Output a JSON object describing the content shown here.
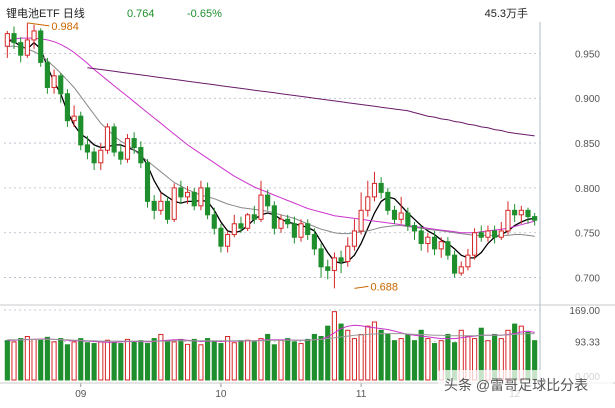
{
  "header": {
    "title": "锂电池ETF 日线",
    "price": "0.764",
    "change": "-0.65%",
    "volume": "45.3万手"
  },
  "colors": {
    "up": "#d62728",
    "down": "#1e8f2c",
    "ma_short": "#000000",
    "ma_mid": "#888888",
    "ma_long": "#cc33cc",
    "ma_longest": "#6a1a6a",
    "annotation": "#cc6600",
    "grid": "#b0b8c8",
    "axis_text": "#555555"
  },
  "watermark": "头条 @雷哥足球比分表",
  "chart_data": [
    {
      "type": "candlestick",
      "name": "price",
      "ylim": [
        0.675,
        0.985
      ],
      "y_ticks": [
        0.7,
        0.75,
        0.8,
        0.85,
        0.9,
        0.95
      ],
      "y_tick_labels": [
        "0.700",
        "0.750",
        "0.800",
        "0.850",
        "0.900",
        "0.950"
      ],
      "x_tick_labels": [
        {
          "i": 11,
          "label": "09"
        },
        {
          "i": 32,
          "label": "10"
        },
        {
          "i": 53,
          "label": "11"
        },
        {
          "i": 76,
          "label": "12"
        }
      ],
      "annotations": [
        {
          "i": 3,
          "value": 0.984,
          "label": "0.984"
        },
        {
          "i": 52,
          "value": 0.688,
          "label": "0.688"
        }
      ],
      "candles": [
        [
          0.958,
          0.972,
          0.975,
          0.945
        ],
        [
          0.972,
          0.962,
          0.98,
          0.955
        ],
        [
          0.962,
          0.948,
          0.968,
          0.94
        ],
        [
          0.948,
          0.965,
          0.984,
          0.945
        ],
        [
          0.965,
          0.975,
          0.982,
          0.955
        ],
        [
          0.975,
          0.94,
          0.978,
          0.935
        ],
        [
          0.94,
          0.912,
          0.945,
          0.905
        ],
        [
          0.912,
          0.925,
          0.932,
          0.905
        ],
        [
          0.925,
          0.905,
          0.928,
          0.895
        ],
        [
          0.905,
          0.875,
          0.91,
          0.868
        ],
        [
          0.875,
          0.88,
          0.892,
          0.868
        ],
        [
          0.88,
          0.848,
          0.885,
          0.842
        ],
        [
          0.848,
          0.84,
          0.858,
          0.832
        ],
        [
          0.84,
          0.828,
          0.845,
          0.82
        ],
        [
          0.828,
          0.842,
          0.85,
          0.82
        ],
        [
          0.842,
          0.868,
          0.872,
          0.838
        ],
        [
          0.868,
          0.84,
          0.872,
          0.835
        ],
        [
          0.84,
          0.832,
          0.848,
          0.826
        ],
        [
          0.832,
          0.855,
          0.86,
          0.828
        ],
        [
          0.855,
          0.845,
          0.862,
          0.838
        ],
        [
          0.845,
          0.828,
          0.852,
          0.822
        ],
        [
          0.828,
          0.785,
          0.832,
          0.778
        ],
        [
          0.785,
          0.775,
          0.792,
          0.765
        ],
        [
          0.775,
          0.785,
          0.795,
          0.77
        ],
        [
          0.785,
          0.765,
          0.79,
          0.76
        ],
        [
          0.765,
          0.8,
          0.805,
          0.762
        ],
        [
          0.8,
          0.79,
          0.808,
          0.782
        ],
        [
          0.79,
          0.795,
          0.802,
          0.782
        ],
        [
          0.795,
          0.78,
          0.8,
          0.775
        ],
        [
          0.78,
          0.8,
          0.808,
          0.775
        ],
        [
          0.8,
          0.77,
          0.806,
          0.765
        ],
        [
          0.77,
          0.755,
          0.778,
          0.748
        ],
        [
          0.755,
          0.735,
          0.76,
          0.728
        ],
        [
          0.735,
          0.748,
          0.752,
          0.728
        ],
        [
          0.748,
          0.76,
          0.77,
          0.745
        ],
        [
          0.76,
          0.755,
          0.768,
          0.75
        ],
        [
          0.755,
          0.77,
          0.772,
          0.752
        ],
        [
          0.77,
          0.765,
          0.78,
          0.76
        ],
        [
          0.765,
          0.792,
          0.808,
          0.762
        ],
        [
          0.792,
          0.78,
          0.798,
          0.775
        ],
        [
          0.78,
          0.755,
          0.785,
          0.748
        ],
        [
          0.755,
          0.765,
          0.77,
          0.75
        ],
        [
          0.765,
          0.76,
          0.77,
          0.755
        ],
        [
          0.76,
          0.745,
          0.768,
          0.738
        ],
        [
          0.745,
          0.76,
          0.765,
          0.74
        ],
        [
          0.76,
          0.748,
          0.765,
          0.742
        ],
        [
          0.748,
          0.732,
          0.755,
          0.725
        ],
        [
          0.732,
          0.712,
          0.738,
          0.7
        ],
        [
          0.712,
          0.708,
          0.72,
          0.698
        ],
        [
          0.708,
          0.722,
          0.728,
          0.688
        ],
        [
          0.722,
          0.718,
          0.73,
          0.705
        ],
        [
          0.718,
          0.735,
          0.745,
          0.712
        ],
        [
          0.735,
          0.752,
          0.765,
          0.73
        ],
        [
          0.752,
          0.775,
          0.795,
          0.748
        ],
        [
          0.775,
          0.79,
          0.808,
          0.768
        ],
        [
          0.79,
          0.805,
          0.818,
          0.785
        ],
        [
          0.805,
          0.795,
          0.812,
          0.788
        ],
        [
          0.795,
          0.775,
          0.8,
          0.77
        ],
        [
          0.775,
          0.765,
          0.78,
          0.76
        ],
        [
          0.765,
          0.772,
          0.79,
          0.76
        ],
        [
          0.772,
          0.758,
          0.778,
          0.752
        ],
        [
          0.758,
          0.752,
          0.762,
          0.742
        ],
        [
          0.752,
          0.738,
          0.758,
          0.73
        ],
        [
          0.738,
          0.745,
          0.75,
          0.728
        ],
        [
          0.745,
          0.732,
          0.752,
          0.725
        ],
        [
          0.732,
          0.74,
          0.745,
          0.722
        ],
        [
          0.74,
          0.725,
          0.745,
          0.72
        ],
        [
          0.725,
          0.705,
          0.73,
          0.7
        ],
        [
          0.705,
          0.712,
          0.718,
          0.702
        ],
        [
          0.712,
          0.725,
          0.732,
          0.708
        ],
        [
          0.725,
          0.75,
          0.755,
          0.72
        ],
        [
          0.75,
          0.745,
          0.758,
          0.74
        ],
        [
          0.745,
          0.752,
          0.758,
          0.74
        ],
        [
          0.752,
          0.745,
          0.758,
          0.738
        ],
        [
          0.745,
          0.752,
          0.762,
          0.742
        ],
        [
          0.752,
          0.775,
          0.785,
          0.748
        ],
        [
          0.775,
          0.77,
          0.782,
          0.762
        ],
        [
          0.77,
          0.775,
          0.78,
          0.76
        ],
        [
          0.775,
          0.768,
          0.778,
          0.76
        ],
        [
          0.768,
          0.764,
          0.772,
          0.758
        ]
      ],
      "series": [
        {
          "key": "ma_short",
          "values": [
            0.965,
            0.963,
            0.958,
            0.955,
            0.962,
            0.955,
            0.935,
            0.918,
            0.905,
            0.885,
            0.87,
            0.86,
            0.855,
            0.848,
            0.845,
            0.846,
            0.848,
            0.848,
            0.845,
            0.842,
            0.838,
            0.825,
            0.808,
            0.795,
            0.79,
            0.785,
            0.783,
            0.785,
            0.785,
            0.786,
            0.785,
            0.775,
            0.762,
            0.752,
            0.75,
            0.752,
            0.758,
            0.765,
            0.77,
            0.772,
            0.77,
            0.765,
            0.762,
            0.76,
            0.758,
            0.756,
            0.752,
            0.74,
            0.728,
            0.718,
            0.716,
            0.718,
            0.725,
            0.738,
            0.755,
            0.772,
            0.785,
            0.79,
            0.788,
            0.78,
            0.772,
            0.765,
            0.758,
            0.752,
            0.748,
            0.742,
            0.738,
            0.732,
            0.725,
            0.722,
            0.722,
            0.728,
            0.738,
            0.745,
            0.748,
            0.752,
            0.758,
            0.762,
            0.765,
            0.766
          ]
        },
        {
          "key": "ma_mid",
          "values": [
            0.958,
            0.958,
            0.957,
            0.955,
            0.952,
            0.948,
            0.942,
            0.935,
            0.928,
            0.92,
            0.912,
            0.902,
            0.892,
            0.882,
            0.872,
            0.865,
            0.858,
            0.852,
            0.848,
            0.842,
            0.836,
            0.83,
            0.824,
            0.818,
            0.812,
            0.806,
            0.802,
            0.798,
            0.795,
            0.792,
            0.79,
            0.788,
            0.785,
            0.782,
            0.78,
            0.778,
            0.777,
            0.776,
            0.775,
            0.774,
            0.772,
            0.77,
            0.768,
            0.766,
            0.763,
            0.76,
            0.757,
            0.754,
            0.752,
            0.75,
            0.749,
            0.749,
            0.75,
            0.751,
            0.752,
            0.754,
            0.756,
            0.757,
            0.758,
            0.758,
            0.757,
            0.756,
            0.755,
            0.754,
            0.753,
            0.752,
            0.751,
            0.75,
            0.749,
            0.748,
            0.747,
            0.747,
            0.747,
            0.747,
            0.747,
            0.747,
            0.748,
            0.748,
            0.747,
            0.746
          ]
        },
        {
          "key": "ma_long",
          "values": [
            0.965,
            0.966,
            0.967,
            0.967,
            0.967,
            0.966,
            0.965,
            0.963,
            0.96,
            0.956,
            0.951,
            0.945,
            0.939,
            0.932,
            0.926,
            0.92,
            0.914,
            0.908,
            0.902,
            0.896,
            0.89,
            0.884,
            0.878,
            0.872,
            0.866,
            0.86,
            0.854,
            0.848,
            0.843,
            0.838,
            0.833,
            0.828,
            0.823,
            0.818,
            0.813,
            0.809,
            0.805,
            0.801,
            0.798,
            0.795,
            0.792,
            0.789,
            0.786,
            0.783,
            0.78,
            0.777,
            0.775,
            0.773,
            0.771,
            0.769,
            0.768,
            0.767,
            0.766,
            0.765,
            0.764,
            0.763,
            0.762,
            0.761,
            0.76,
            0.759,
            0.758,
            0.757,
            0.756,
            0.755,
            0.754,
            0.753,
            0.752,
            0.751,
            0.75,
            0.75,
            0.75,
            0.751,
            0.752,
            0.753,
            0.754,
            0.755,
            0.757,
            0.759,
            0.761,
            0.763
          ]
        },
        {
          "key": "ma_longest",
          "start": 12,
          "values": [
            0.934,
            0.933,
            0.932,
            0.931,
            0.93,
            0.929,
            0.928,
            0.927,
            0.926,
            0.925,
            0.924,
            0.923,
            0.922,
            0.921,
            0.92,
            0.919,
            0.918,
            0.917,
            0.916,
            0.915,
            0.914,
            0.913,
            0.912,
            0.911,
            0.91,
            0.909,
            0.908,
            0.907,
            0.906,
            0.905,
            0.904,
            0.903,
            0.902,
            0.901,
            0.9,
            0.899,
            0.898,
            0.897,
            0.896,
            0.895,
            0.894,
            0.893,
            0.892,
            0.891,
            0.89,
            0.889,
            0.888,
            0.887,
            0.886,
            0.884,
            0.882,
            0.88,
            0.879,
            0.877,
            0.876,
            0.874,
            0.873,
            0.871,
            0.87,
            0.868,
            0.867,
            0.865,
            0.864,
            0.862,
            0.861,
            0.86,
            0.859,
            0.858
          ]
        }
      ]
    },
    {
      "type": "bar",
      "name": "volume",
      "ylim": [
        0,
        169
      ],
      "y_tick_labels": [
        "169.00",
        "93.33",
        "0.000"
      ],
      "values": [
        95,
        92,
        100,
        105,
        98,
        96,
        103,
        92,
        100,
        85,
        92,
        100,
        90,
        88,
        92,
        96,
        90,
        88,
        98,
        92,
        95,
        88,
        100,
        110,
        95,
        92,
        98,
        86,
        98,
        85,
        100,
        92,
        88,
        105,
        90,
        95,
        96,
        92,
        100,
        110,
        85,
        96,
        100,
        92,
        88,
        98,
        110,
        105,
        130,
        165,
        135,
        120,
        100,
        110,
        130,
        140,
        120,
        110,
        95,
        100,
        110,
        95,
        120,
        100,
        88,
        95,
        110,
        90,
        120,
        105,
        100,
        125,
        95,
        110,
        100,
        120,
        135,
        130,
        115,
        95
      ],
      "dir": [
        0,
        1,
        0,
        1,
        1,
        0,
        0,
        1,
        0,
        0,
        1,
        0,
        0,
        0,
        1,
        1,
        0,
        0,
        1,
        0,
        0,
        0,
        0,
        1,
        0,
        1,
        0,
        1,
        0,
        1,
        0,
        0,
        0,
        1,
        1,
        0,
        1,
        0,
        1,
        0,
        0,
        1,
        0,
        0,
        1,
        0,
        0,
        0,
        0,
        1,
        0,
        1,
        1,
        1,
        1,
        1,
        0,
        0,
        0,
        1,
        0,
        0,
        0,
        1,
        0,
        1,
        0,
        0,
        1,
        1,
        1,
        0,
        1,
        0,
        1,
        1,
        0,
        1,
        0,
        0
      ],
      "series": [
        {
          "key": "vma_short",
          "values": [
            96,
            96,
            97,
            98,
            98,
            99,
            99,
            98,
            97,
            96,
            95,
            95,
            94,
            93,
            92,
            91,
            91,
            92,
            93,
            93,
            93,
            92,
            93,
            95,
            96,
            97,
            97,
            96,
            95,
            93,
            94,
            94,
            93,
            94,
            94,
            94,
            95,
            95,
            96,
            97,
            97,
            97,
            97,
            96,
            96,
            96,
            97,
            98,
            104,
            114,
            124,
            130,
            132,
            131,
            128,
            126,
            124,
            122,
            118,
            114,
            110,
            108,
            106,
            104,
            102,
            100,
            100,
            100,
            102,
            104,
            106,
            108,
            108,
            108,
            108,
            110,
            112,
            116,
            118,
            115
          ]
        },
        {
          "key": "vma_long",
          "values": [
            97,
            97,
            97,
            97,
            98,
            98,
            98,
            98,
            97,
            97,
            96,
            96,
            95,
            95,
            94,
            94,
            94,
            94,
            94,
            94,
            94,
            94,
            94,
            94,
            94,
            95,
            95,
            95,
            95,
            95,
            95,
            95,
            95,
            95,
            95,
            95,
            95,
            95,
            95,
            96,
            96,
            96,
            96,
            96,
            96,
            96,
            97,
            98,
            100,
            102,
            104,
            106,
            108,
            109,
            110,
            111,
            112,
            112,
            112,
            112,
            111,
            110,
            110,
            109,
            108,
            108,
            107,
            107,
            107,
            107,
            107,
            108,
            108,
            108,
            108,
            109,
            110,
            111,
            112,
            112
          ]
        }
      ]
    }
  ]
}
